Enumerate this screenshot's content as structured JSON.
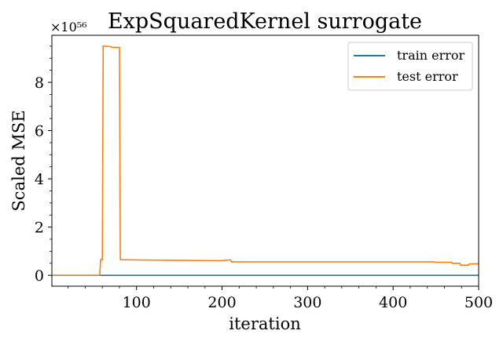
{
  "chart_data": {
    "type": "line",
    "title": "ExpSquaredKernel surrogate",
    "xlabel": "iteration",
    "ylabel": "Scaled MSE",
    "y_multiplier_label": "×10⁵⁶",
    "y_scale_note": "y values in units of 1e56",
    "xlim": [
      1,
      500
    ],
    "ylim": [
      -0.45,
      9.95
    ],
    "x_ticks": [
      100,
      200,
      300,
      400,
      500
    ],
    "x_tick_labels": [
      "100",
      "200",
      "300",
      "400",
      "500"
    ],
    "y_ticks": [
      0,
      2,
      4,
      6,
      8
    ],
    "y_tick_labels": [
      "0",
      "2",
      "4",
      "6",
      "8"
    ],
    "grid": false,
    "legend_position": "top-right",
    "series": [
      {
        "name": "train error",
        "color": "#1f77b4",
        "x": [
          1,
          500
        ],
        "y": [
          0,
          0
        ]
      },
      {
        "name": "test error",
        "color": "#ff7f0e",
        "x": [
          1,
          57,
          58,
          60,
          61,
          62,
          70,
          71,
          72,
          79,
          80,
          81,
          100,
          150,
          200,
          208,
          210,
          211,
          250,
          300,
          350,
          400,
          448,
          449,
          468,
          469,
          478,
          479,
          488,
          489,
          500
        ],
        "y": [
          0,
          0,
          0.65,
          0.65,
          9.5,
          9.5,
          9.48,
          9.45,
          9.45,
          9.45,
          9.45,
          0.65,
          0.64,
          0.62,
          0.61,
          0.64,
          0.64,
          0.56,
          0.56,
          0.56,
          0.56,
          0.56,
          0.56,
          0.54,
          0.54,
          0.5,
          0.5,
          0.42,
          0.42,
          0.47,
          0.48
        ]
      }
    ]
  }
}
